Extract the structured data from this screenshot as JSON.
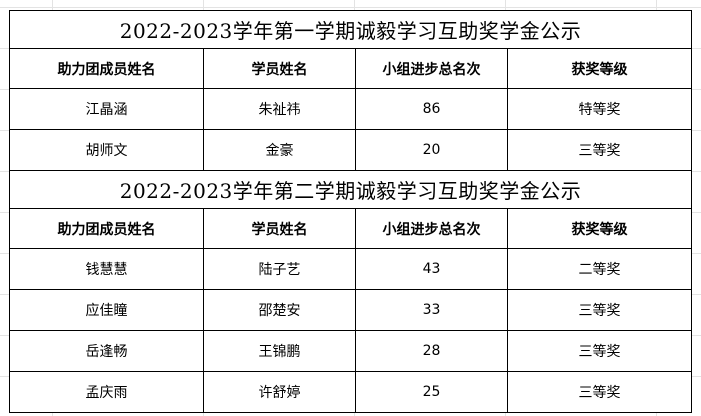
{
  "sections": [
    {
      "title": "2022-2023学年第一学期诚毅学习互助奖学金公示",
      "headers": [
        "助力团成员姓名",
        "学员姓名",
        "小组进步总名次",
        "获奖等级"
      ],
      "rows": [
        [
          "江晶涵",
          "朱祉祎",
          "86",
          "特等奖"
        ],
        [
          "胡师文",
          "金豪",
          "20",
          "三等奖"
        ]
      ]
    },
    {
      "title": "2022-2023学年第二学期诚毅学习互助奖学金公示",
      "headers": [
        "助力团成员姓名",
        "学员姓名",
        "小组进步总名次",
        "获奖等级"
      ],
      "rows": [
        [
          "钱慧慧",
          "陆子艺",
          "43",
          "二等奖"
        ],
        [
          "应佳瞳",
          "邵楚安",
          "33",
          "三等奖"
        ],
        [
          "岳逢畅",
          "王锦鹏",
          "28",
          "三等奖"
        ],
        [
          "孟庆雨",
          "许舒婷",
          "25",
          "三等奖"
        ]
      ]
    }
  ]
}
